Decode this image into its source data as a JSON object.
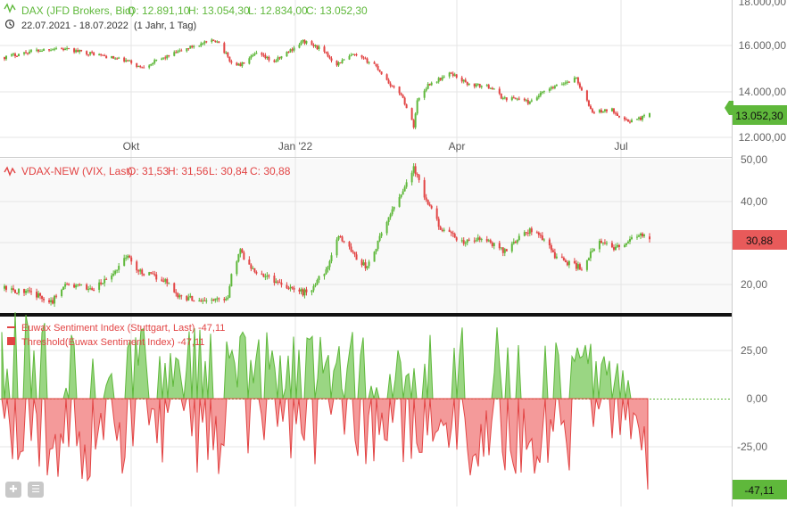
{
  "colors": {
    "up": "#5fb83b",
    "down": "#e24444",
    "dax_badge": "#5fb83b",
    "vdax_badge": "#e85a5a",
    "sentiment_badge": "#5fb83b"
  },
  "icons": {
    "indicator": "chart-wave-icon",
    "clock": "clock-icon",
    "tool_a": "crosshair-icon",
    "tool_b": "layers-icon"
  },
  "panels": {
    "dax": {
      "header": "DAX (JFD Brokers, Bid)",
      "ohlc": {
        "o": "O: 12.891,10",
        "h": "H: 13.054,30",
        "l": "L: 12.834,00",
        "c": "C: 13.052,30"
      },
      "subheader_range": "22.07.2021 - 18.07.2022",
      "subheader_period": "(1 Jahr, 1 Tag)",
      "last_value": "13.052,30",
      "y_ticks": [
        "18.000,00",
        "16.000,00",
        "14.000,00",
        "12.000,00"
      ],
      "x_ticks": [
        "Okt",
        "Jan '22",
        "Apr",
        "Jul"
      ]
    },
    "vdax": {
      "header": "VDAX-NEW (VIX, Last)",
      "ohlc": {
        "o": "O: 31,53",
        "h": "H: 31,56",
        "l": "L: 30,84",
        "c": "C: 30,88"
      },
      "last_value": "30,88",
      "y_ticks": [
        "50,00",
        "40,00",
        "20,00"
      ]
    },
    "sentiment": {
      "legend_line": "Euwax Sentiment Index (Stuttgart, Last)",
      "legend_line_value": "-47,11",
      "legend_area": "Threshold(Euwax Sentiment Index)",
      "legend_area_value": "-47,11",
      "last_value": "-47,11",
      "y_ticks": [
        "25,00",
        "0,00",
        "-25,00"
      ]
    }
  },
  "chart_data": [
    {
      "type": "candlestick",
      "title": "DAX (JFD Brokers, Bid)",
      "x_range": [
        "2021-07-22",
        "2022-07-18"
      ],
      "ylim": [
        11700,
        18000
      ],
      "y_ticks": [
        12000,
        14000,
        16000,
        18000
      ],
      "x_tick_dates": [
        "2021-10-01",
        "2022-01-01",
        "2022-04-01",
        "2022-07-01"
      ],
      "last": {
        "open": 12891.1,
        "high": 13054.3,
        "low": 12834.0,
        "close": 13052.3
      },
      "anchors": [
        [
          "2021-07-22",
          15500
        ],
        [
          "2021-08-05",
          15750
        ],
        [
          "2021-08-20",
          15900
        ],
        [
          "2021-09-10",
          15650
        ],
        [
          "2021-09-30",
          15300
        ],
        [
          "2021-10-06",
          15050
        ],
        [
          "2021-10-20",
          15500
        ],
        [
          "2021-11-05",
          16000
        ],
        [
          "2021-11-18",
          16250
        ],
        [
          "2021-11-26",
          15250
        ],
        [
          "2021-12-01",
          15150
        ],
        [
          "2021-12-10",
          15650
        ],
        [
          "2021-12-20",
          15300
        ],
        [
          "2022-01-05",
          16200
        ],
        [
          "2022-01-14",
          15900
        ],
        [
          "2022-01-24",
          15200
        ],
        [
          "2022-02-02",
          15600
        ],
        [
          "2022-02-14",
          15200
        ],
        [
          "2022-02-24",
          14200
        ],
        [
          "2022-03-01",
          13900
        ],
        [
          "2022-03-08",
          12500
        ],
        [
          "2022-03-10",
          13600
        ],
        [
          "2022-03-16",
          14300
        ],
        [
          "2022-03-29",
          14800
        ],
        [
          "2022-04-08",
          14300
        ],
        [
          "2022-04-20",
          14200
        ],
        [
          "2022-04-27",
          13700
        ],
        [
          "2022-05-06",
          13700
        ],
        [
          "2022-05-12",
          13500
        ],
        [
          "2022-05-20",
          14000
        ],
        [
          "2022-06-01",
          14400
        ],
        [
          "2022-06-07",
          14600
        ],
        [
          "2022-06-10",
          14000
        ],
        [
          "2022-06-16",
          13100
        ],
        [
          "2022-06-27",
          13200
        ],
        [
          "2022-07-05",
          12700
        ],
        [
          "2022-07-12",
          12800
        ],
        [
          "2022-07-18",
          13052
        ]
      ]
    },
    {
      "type": "candlestick",
      "title": "VDAX-NEW (VIX, Last)",
      "x_range": [
        "2021-07-22",
        "2022-07-18"
      ],
      "ylim": [
        14,
        50
      ],
      "y_ticks": [
        20,
        30,
        40,
        50
      ],
      "last": {
        "open": 31.53,
        "high": 31.56,
        "low": 30.84,
        "close": 30.88
      },
      "anchors": [
        [
          "2021-07-22",
          19
        ],
        [
          "2021-08-05",
          18
        ],
        [
          "2021-08-18",
          16
        ],
        [
          "2021-08-24",
          20
        ],
        [
          "2021-09-10",
          19
        ],
        [
          "2021-09-20",
          22
        ],
        [
          "2021-09-28",
          27
        ],
        [
          "2021-10-06",
          23
        ],
        [
          "2021-10-20",
          21
        ],
        [
          "2021-10-28",
          17
        ],
        [
          "2021-11-15",
          16
        ],
        [
          "2021-11-24",
          17
        ],
        [
          "2021-11-26",
          23
        ],
        [
          "2021-12-01",
          28
        ],
        [
          "2021-12-07",
          24
        ],
        [
          "2021-12-20",
          21
        ],
        [
          "2022-01-05",
          18
        ],
        [
          "2022-01-10",
          19
        ],
        [
          "2022-01-20",
          25
        ],
        [
          "2022-01-25",
          32
        ],
        [
          "2022-02-05",
          26
        ],
        [
          "2022-02-10",
          24
        ],
        [
          "2022-02-14",
          28
        ],
        [
          "2022-02-24",
          38
        ],
        [
          "2022-03-01",
          42
        ],
        [
          "2022-03-08",
          48
        ],
        [
          "2022-03-15",
          40
        ],
        [
          "2022-03-24",
          33
        ],
        [
          "2022-04-05",
          30
        ],
        [
          "2022-04-15",
          31
        ],
        [
          "2022-04-28",
          28
        ],
        [
          "2022-05-05",
          31
        ],
        [
          "2022-05-12",
          33
        ],
        [
          "2022-05-20",
          31
        ],
        [
          "2022-05-26",
          27
        ],
        [
          "2022-06-03",
          25
        ],
        [
          "2022-06-10",
          24
        ],
        [
          "2022-06-16",
          28
        ],
        [
          "2022-06-20",
          30
        ],
        [
          "2022-06-28",
          29
        ],
        [
          "2022-07-06",
          30
        ],
        [
          "2022-07-12",
          32
        ],
        [
          "2022-07-18",
          30.88
        ]
      ]
    },
    {
      "type": "area",
      "title": "Euwax Sentiment Index (Stuttgart, Last)",
      "series": [
        {
          "name": "Euwax Sentiment Index (Stuttgart, Last)"
        },
        {
          "name": "Threshold(Euwax Sentiment Index)"
        }
      ],
      "ylim": [
        -50,
        35
      ],
      "y_ticks": [
        -25,
        0,
        25
      ],
      "last_value": -47.11
    }
  ]
}
